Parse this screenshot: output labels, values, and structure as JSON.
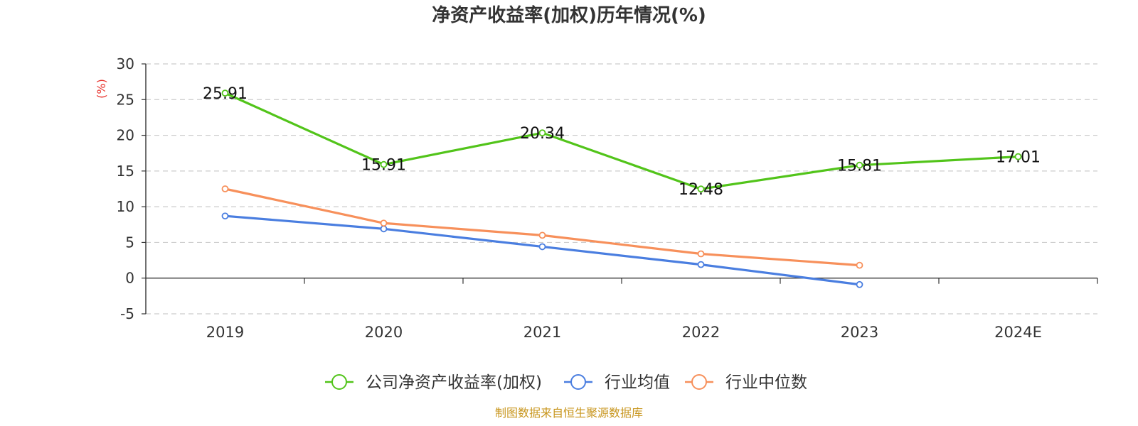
{
  "chart_data": {
    "type": "line",
    "title": "净资产收益率(加权)历年情况(%)",
    "ylabel": "(%)",
    "xlabel": "",
    "categories": [
      "2019",
      "2020",
      "2021",
      "2022",
      "2023",
      "2024E"
    ],
    "ylim": [
      -5,
      30
    ],
    "yticks": [
      "30",
      "25",
      "20",
      "15",
      "10",
      "5",
      "0",
      "-5"
    ],
    "grid": true,
    "legend_position": "bottom",
    "series": [
      {
        "name": "公司净资产收益率(加权)",
        "color": "#52c41a",
        "values": [
          25.91,
          15.91,
          20.34,
          12.48,
          15.81,
          17.01
        ],
        "labels": [
          "25.91",
          "15.91",
          "20.34",
          "12.48",
          "15.81",
          "17.01"
        ]
      },
      {
        "name": "行业均值",
        "color": "#4a7ee0",
        "values": [
          8.7,
          6.9,
          4.4,
          1.9,
          -0.9,
          null
        ]
      },
      {
        "name": "行业中位数",
        "color": "#f7905b",
        "values": [
          12.5,
          7.7,
          6.0,
          3.4,
          1.8,
          null
        ]
      }
    ]
  },
  "colors": {
    "ylabel": "#e8322c",
    "source": "#c8961e",
    "axis": "#333333",
    "grid": "#cccccc"
  },
  "source_text": "制图数据来自恒生聚源数据库"
}
